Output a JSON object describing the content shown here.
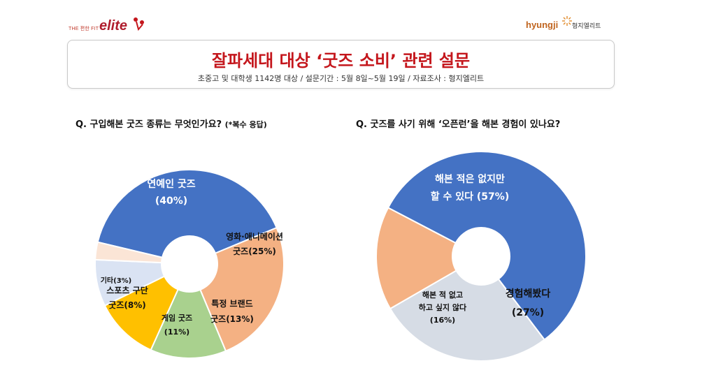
{
  "header": {
    "left_logo": {
      "prefix": "THE 편한 FIT",
      "brand": "elite"
    },
    "right_logo": {
      "brand": "hyungji",
      "korean": "형지엘리트"
    }
  },
  "title": {
    "main": "잘파세대 대상 ‘굿즈 소비’ 관련 설문",
    "subtitle": "초중고 및 대학생 1142명 대상 / 설문기간 : 5월 8일~5월 19일 / 자료조사 : 형지엘리트"
  },
  "colors": {
    "title_red": "#c4161c",
    "blue": "#4472c4",
    "orange": "#f4b183",
    "green": "#a9d18e",
    "yellow": "#ffc000",
    "light_blue": "#dae3f3",
    "beige": "#fbe5d6",
    "gray_blue": "#d6dce5"
  },
  "chart_data": [
    {
      "type": "pie",
      "donut": true,
      "title": "Q. 구입해본 굿즈 종류는 무엇인가요?",
      "title_note": "(*복수 응답)",
      "slices": [
        {
          "line1": "연예인 굿즈",
          "line2": "(40%)",
          "value": 40,
          "color": "#4472c4",
          "text_color": "#ffffff"
        },
        {
          "line1": "영화·애니메이션",
          "line2": "굿즈(25%)",
          "value": 25,
          "color": "#f4b183",
          "text_color": "#111111"
        },
        {
          "line1": "특정 브랜드",
          "line2": "굿즈(13%)",
          "value": 13,
          "color": "#a9d18e",
          "text_color": "#111111"
        },
        {
          "line1": "게임 굿즈",
          "line2": "(11%)",
          "value": 11,
          "color": "#ffc000",
          "text_color": "#111111"
        },
        {
          "line1": "스포츠 구단",
          "line2": "굿즈(8%)",
          "value": 8,
          "color": "#dae3f3",
          "text_color": "#111111"
        },
        {
          "line1": "기타(3%)",
          "line2": "",
          "value": 3,
          "color": "#fbe5d6",
          "text_color": "#111111"
        }
      ]
    },
    {
      "type": "pie",
      "donut": true,
      "title": "Q. 굿즈를 사기 위해 ‘오픈런’을 해본 경험이 있나요?",
      "slices": [
        {
          "line1": "해본 적은 없지만",
          "line2": "할 수 있다 (57%)",
          "value": 57,
          "color": "#4472c4",
          "text_color": "#ffffff"
        },
        {
          "line1": "경험해봤다",
          "line2": "(27%)",
          "value": 27,
          "color": "#d6dce5",
          "text_color": "#111111"
        },
        {
          "line1": "해본 적 없고",
          "line2": "하고 싶지 않다",
          "line3": "(16%)",
          "value": 16,
          "color": "#f4b183",
          "text_color": "#111111"
        }
      ]
    }
  ]
}
